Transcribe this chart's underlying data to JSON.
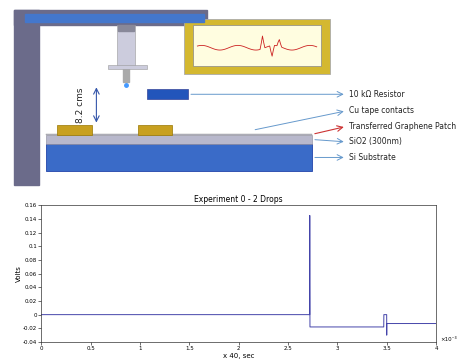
{
  "title_plot": "Experiment 0 - 2 Drops",
  "xlabel": "x 40, sec",
  "ylabel": "Volts",
  "signal_color": "#4444aa",
  "annotations": {
    "resistor": "10 kΩ Resistor",
    "cu_tape": "Cu tape contacts",
    "graphene": "Transferred Graphene Patch",
    "sio2": "SiO2 (300nm)",
    "si": "Si Substrate"
  },
  "schematic_label": "8.2 cms",
  "stand_color": "#6b6b8a",
  "si_color": "#3a6bc8",
  "sio2_color": "#b8b8cc",
  "cu_color": "#c8a020",
  "resistor_color": "#2255bb",
  "monitor_bg": "#d4b830",
  "arrow_blue": "#6699cc",
  "arrow_red": "#cc3333",
  "ytick_vals": [
    -0.04,
    -0.02,
    0,
    0.02,
    0.04,
    0.06,
    0.08,
    0.1,
    0.12,
    0.14,
    0.16
  ],
  "ytick_labels": [
    "-0.04",
    "-0.02",
    "0",
    "0.02",
    "0.04",
    "0.06",
    "0.08",
    "0.1",
    "0.12",
    "0.14",
    "0.16"
  ],
  "xtick_vals": [
    0,
    0.0005,
    0.001,
    0.0015,
    0.002,
    0.0025,
    0.003,
    0.0035,
    0.004
  ],
  "xtick_labels": [
    "0",
    "0.5",
    "1",
    "1.5",
    "2",
    "2.5",
    "3",
    "3.5",
    "4"
  ]
}
